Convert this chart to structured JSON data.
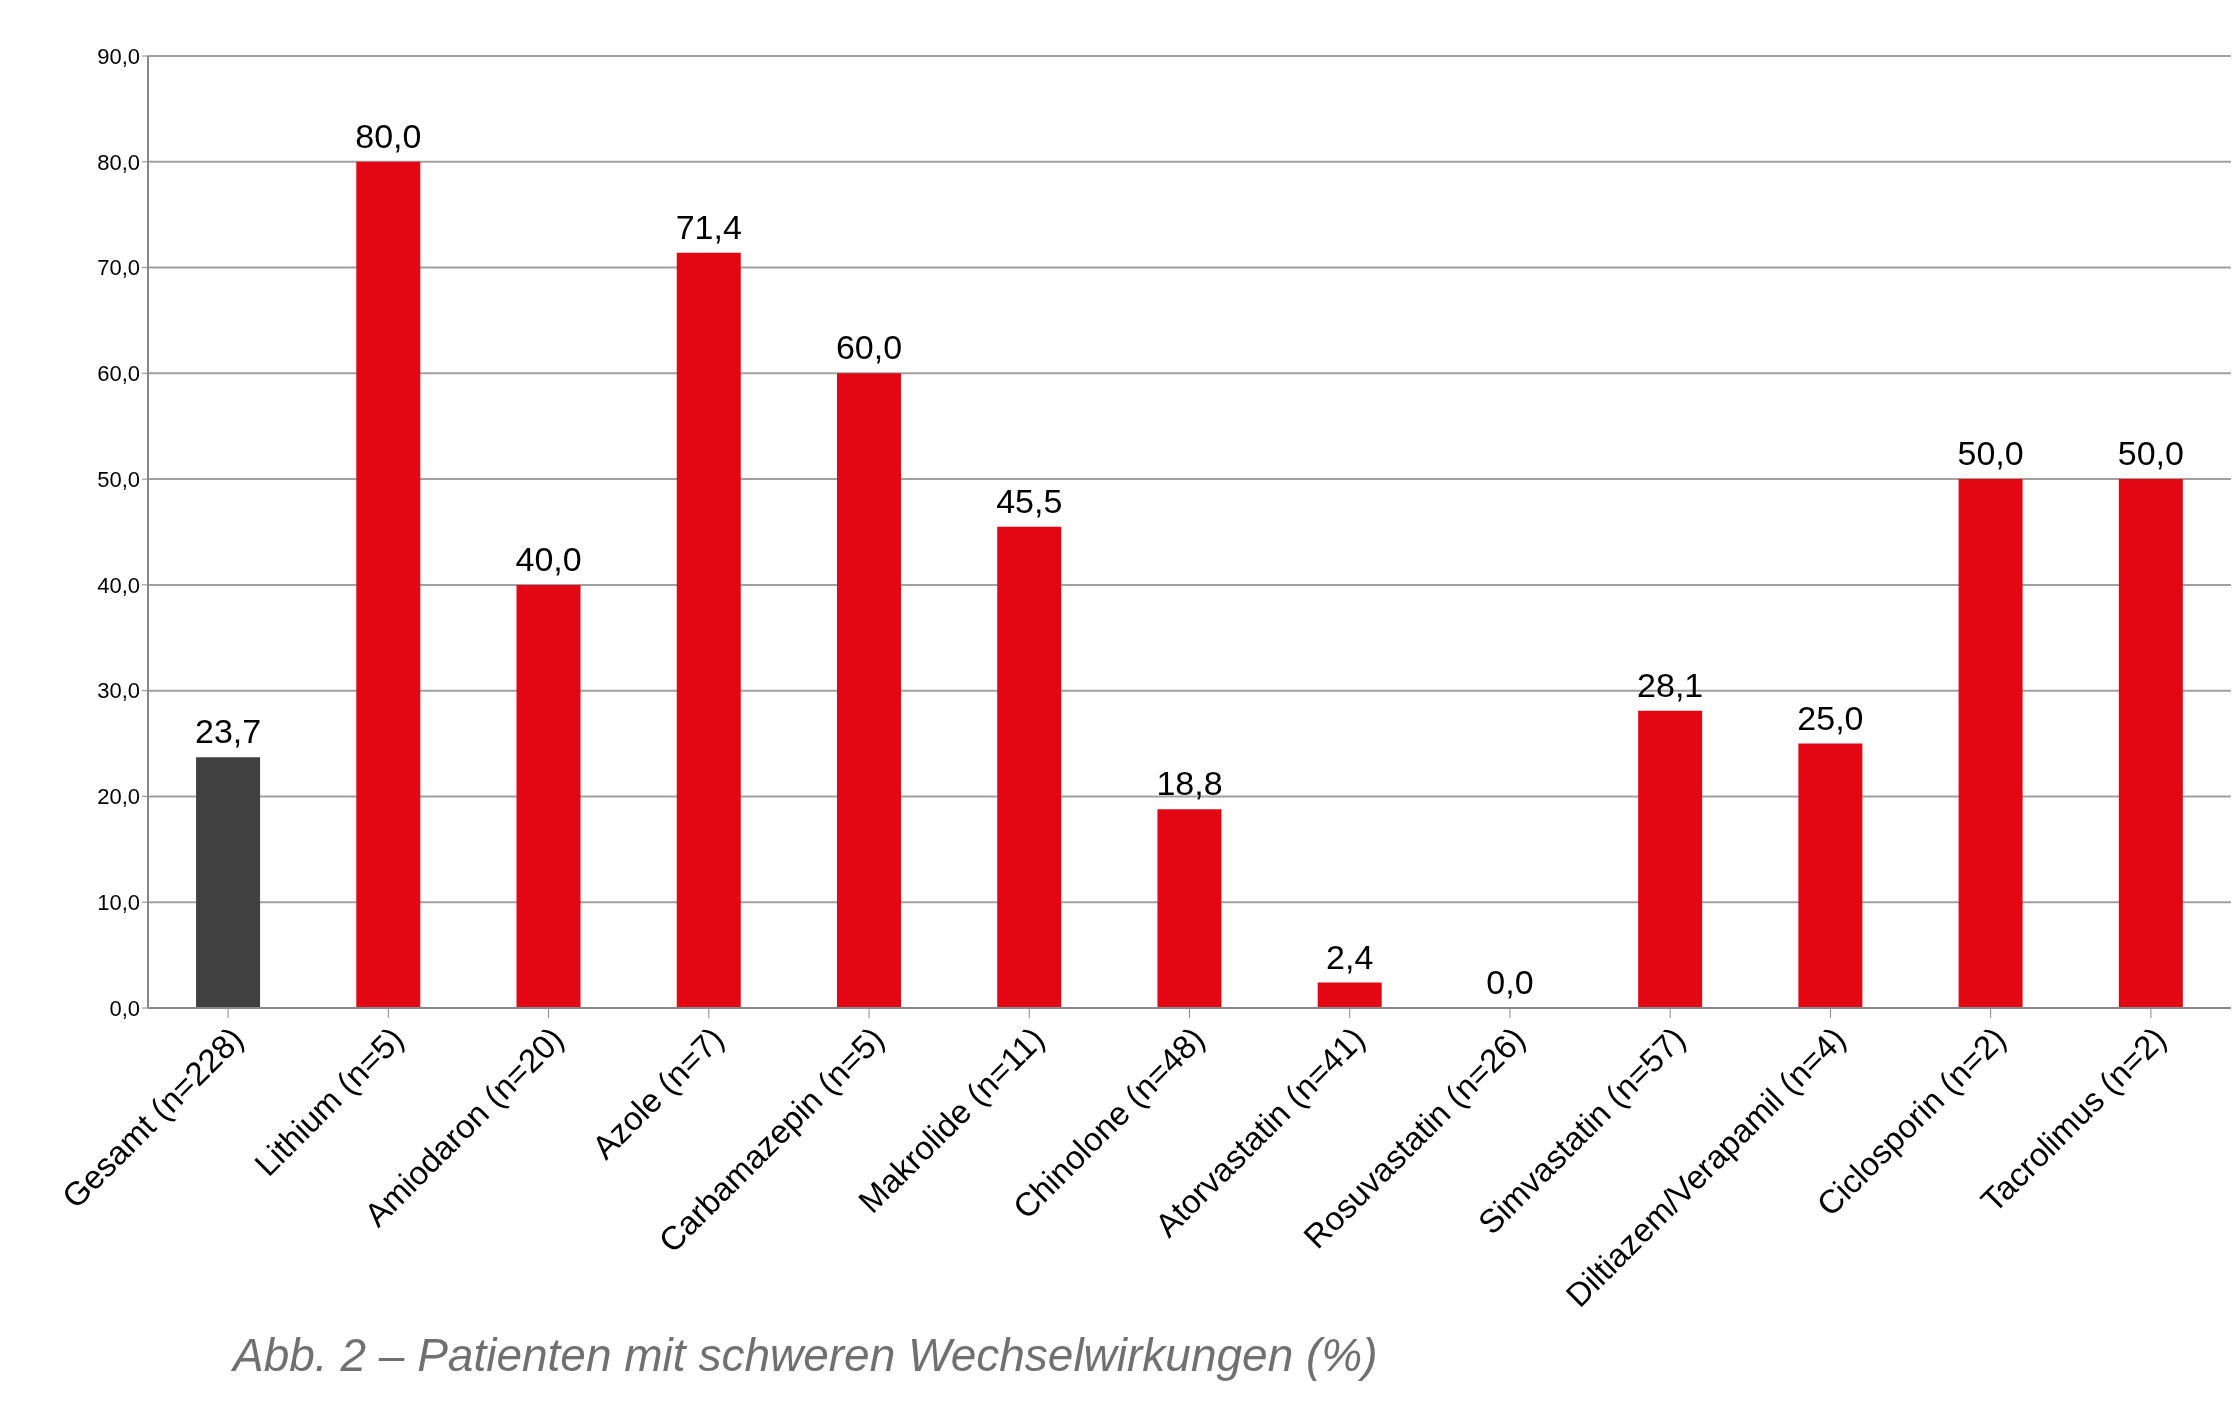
{
  "chart_data": {
    "type": "bar",
    "categories": [
      "Gesamt (n=228)",
      "Lithium (n=5)",
      "Amiodaron (n=20)",
      "Azole (n=7)",
      "Carbamazepin (n=5)",
      "Makrolide (n=11)",
      "Chinolone (n=48)",
      "Atorvastatin (n=41)",
      "Rosuvastatin (n=26)",
      "Simvastatin (n=57)",
      "Diltiazem/Verapamil (n=4)",
      "Ciclosporin (n=2)",
      "Tacrolimus (n=2)"
    ],
    "values": [
      23.7,
      80.0,
      40.0,
      71.4,
      60.0,
      45.5,
      18.8,
      2.4,
      0.0,
      28.1,
      25.0,
      50.0,
      50.0
    ],
    "value_labels": [
      "23,7",
      "80,0",
      "40,0",
      "71,4",
      "60,0",
      "45,5",
      "18,8",
      "2,4",
      "0,0",
      "28,1",
      "25,0",
      "50,0",
      "50,0"
    ],
    "colors": [
      "#404040",
      "#e30613",
      "#e30613",
      "#e30613",
      "#e30613",
      "#e30613",
      "#e30613",
      "#e30613",
      "#e30613",
      "#e30613",
      "#e30613",
      "#e30613",
      "#e30613"
    ],
    "ylim": [
      0,
      90
    ],
    "yticks": [
      {
        "value": 0,
        "label": "0,0"
      },
      {
        "value": 10,
        "label": "10,0"
      },
      {
        "value": 20,
        "label": "20,0"
      },
      {
        "value": 30,
        "label": "30,0"
      },
      {
        "value": 40,
        "label": "40,0"
      },
      {
        "value": 50,
        "label": "50,0"
      },
      {
        "value": 60,
        "label": "60,0"
      },
      {
        "value": 70,
        "label": "70,0"
      },
      {
        "value": 80,
        "label": "80,0"
      },
      {
        "value": 90,
        "label": "90,0"
      }
    ],
    "grid": "y",
    "annotations": [
      "Abb. 2 – Patienten mit schweren Wechselwirkungen (%)"
    ]
  }
}
